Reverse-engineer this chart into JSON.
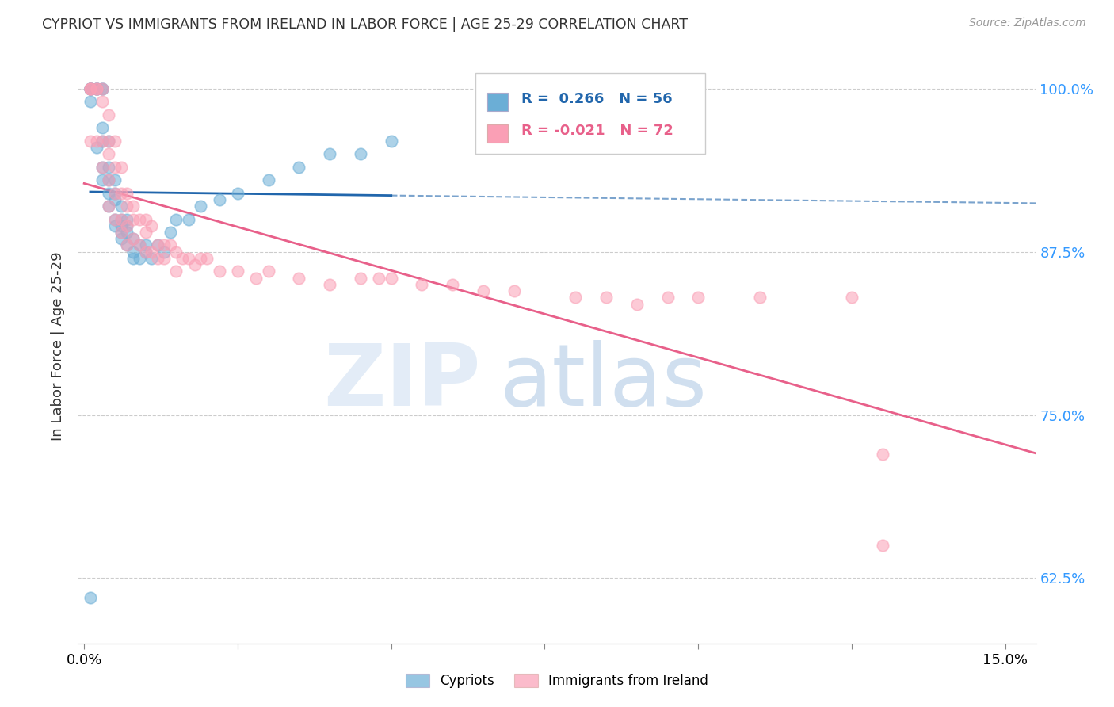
{
  "title": "CYPRIOT VS IMMIGRANTS FROM IRELAND IN LABOR FORCE | AGE 25-29 CORRELATION CHART",
  "source": "Source: ZipAtlas.com",
  "ylabel": "In Labor Force | Age 25-29",
  "xlim": [
    -0.001,
    0.155
  ],
  "ylim": [
    0.575,
    1.03
  ],
  "yticks": [
    0.625,
    0.75,
    0.875,
    1.0
  ],
  "ytick_labels": [
    "62.5%",
    "75.0%",
    "87.5%",
    "100.0%"
  ],
  "xticks": [
    0.0,
    0.025,
    0.05,
    0.075,
    0.1,
    0.125,
    0.15
  ],
  "xtick_labels": [
    "0.0%",
    "",
    "",
    "",
    "",
    "",
    "15.0%"
  ],
  "legend_labels": [
    "Cypriots",
    "Immigrants from Ireland"
  ],
  "blue_R": 0.266,
  "blue_N": 56,
  "pink_R": -0.021,
  "pink_N": 72,
  "blue_color": "#6baed6",
  "pink_color": "#fa9fb5",
  "blue_line_color": "#2166ac",
  "pink_line_color": "#e8608a",
  "blue_x": [
    0.001,
    0.001,
    0.001,
    0.001,
    0.001,
    0.002,
    0.002,
    0.002,
    0.002,
    0.003,
    0.003,
    0.003,
    0.003,
    0.003,
    0.003,
    0.004,
    0.004,
    0.004,
    0.004,
    0.004,
    0.005,
    0.005,
    0.005,
    0.005,
    0.005,
    0.006,
    0.006,
    0.006,
    0.006,
    0.006,
    0.007,
    0.007,
    0.007,
    0.007,
    0.008,
    0.008,
    0.008,
    0.009,
    0.009,
    0.01,
    0.01,
    0.011,
    0.012,
    0.013,
    0.014,
    0.015,
    0.017,
    0.019,
    0.022,
    0.025,
    0.03,
    0.035,
    0.04,
    0.045,
    0.05,
    0.001
  ],
  "blue_y": [
    1.0,
    1.0,
    1.0,
    1.0,
    0.99,
    1.0,
    1.0,
    1.0,
    0.955,
    1.0,
    1.0,
    0.97,
    0.96,
    0.94,
    0.93,
    0.96,
    0.94,
    0.93,
    0.92,
    0.91,
    0.93,
    0.92,
    0.915,
    0.9,
    0.895,
    0.91,
    0.9,
    0.895,
    0.89,
    0.885,
    0.9,
    0.895,
    0.89,
    0.88,
    0.885,
    0.875,
    0.87,
    0.88,
    0.87,
    0.88,
    0.875,
    0.87,
    0.88,
    0.875,
    0.89,
    0.9,
    0.9,
    0.91,
    0.915,
    0.92,
    0.93,
    0.94,
    0.95,
    0.95,
    0.96,
    0.61
  ],
  "pink_x": [
    0.001,
    0.001,
    0.001,
    0.001,
    0.002,
    0.002,
    0.002,
    0.003,
    0.003,
    0.003,
    0.003,
    0.004,
    0.004,
    0.004,
    0.004,
    0.004,
    0.005,
    0.005,
    0.005,
    0.005,
    0.006,
    0.006,
    0.006,
    0.006,
    0.007,
    0.007,
    0.007,
    0.007,
    0.008,
    0.008,
    0.008,
    0.009,
    0.009,
    0.01,
    0.01,
    0.01,
    0.011,
    0.011,
    0.012,
    0.012,
    0.013,
    0.013,
    0.014,
    0.015,
    0.015,
    0.016,
    0.017,
    0.018,
    0.019,
    0.02,
    0.022,
    0.025,
    0.028,
    0.03,
    0.035,
    0.04,
    0.045,
    0.048,
    0.05,
    0.055,
    0.06,
    0.065,
    0.07,
    0.08,
    0.085,
    0.09,
    0.095,
    0.1,
    0.11,
    0.125,
    0.13,
    0.13
  ],
  "pink_y": [
    1.0,
    1.0,
    1.0,
    0.96,
    1.0,
    1.0,
    0.96,
    1.0,
    0.99,
    0.96,
    0.94,
    0.98,
    0.96,
    0.95,
    0.93,
    0.91,
    0.96,
    0.94,
    0.92,
    0.9,
    0.94,
    0.92,
    0.9,
    0.89,
    0.92,
    0.91,
    0.895,
    0.88,
    0.91,
    0.9,
    0.885,
    0.9,
    0.88,
    0.9,
    0.89,
    0.875,
    0.895,
    0.875,
    0.88,
    0.87,
    0.88,
    0.87,
    0.88,
    0.875,
    0.86,
    0.87,
    0.87,
    0.865,
    0.87,
    0.87,
    0.86,
    0.86,
    0.855,
    0.86,
    0.855,
    0.85,
    0.855,
    0.855,
    0.855,
    0.85,
    0.85,
    0.845,
    0.845,
    0.84,
    0.84,
    0.835,
    0.84,
    0.84,
    0.84,
    0.84,
    0.65,
    0.72
  ]
}
